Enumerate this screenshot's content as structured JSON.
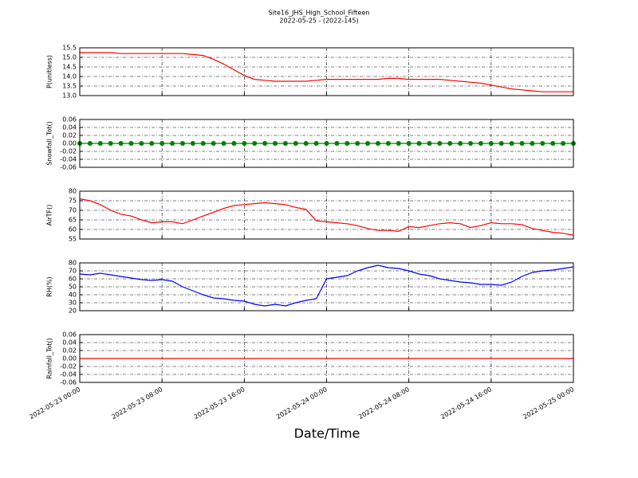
{
  "title": "Site16_JHS_High_School_Fifteen",
  "subtitle": "2022-05-25 - (2022-145)",
  "xlabel": "Date/Time",
  "x": [
    "2022-05-23 00:00",
    "2022-05-23 01:00",
    "2022-05-23 02:00",
    "2022-05-23 03:00",
    "2022-05-23 04:00",
    "2022-05-23 05:00",
    "2022-05-23 06:00",
    "2022-05-23 07:00",
    "2022-05-23 08:00",
    "2022-05-23 09:00",
    "2022-05-23 10:00",
    "2022-05-23 11:00",
    "2022-05-23 12:00",
    "2022-05-23 13:00",
    "2022-05-23 14:00",
    "2022-05-23 15:00",
    "2022-05-23 16:00",
    "2022-05-23 17:00",
    "2022-05-23 18:00",
    "2022-05-23 19:00",
    "2022-05-23 20:00",
    "2022-05-23 21:00",
    "2022-05-23 22:00",
    "2022-05-23 23:00",
    "2022-05-24 00:00",
    "2022-05-24 01:00",
    "2022-05-24 02:00",
    "2022-05-24 03:00",
    "2022-05-24 04:00",
    "2022-05-24 05:00",
    "2022-05-24 06:00",
    "2022-05-24 07:00",
    "2022-05-24 08:00",
    "2022-05-24 09:00",
    "2022-05-24 10:00",
    "2022-05-24 11:00",
    "2022-05-24 12:00",
    "2022-05-24 13:00",
    "2022-05-24 14:00",
    "2022-05-24 15:00",
    "2022-05-24 16:00",
    "2022-05-24 17:00",
    "2022-05-24 18:00",
    "2022-05-24 19:00",
    "2022-05-24 20:00",
    "2022-05-24 21:00",
    "2022-05-24 22:00",
    "2022-05-24 23:00",
    "2022-05-25 00:00"
  ],
  "xlim": [
    "2022-05-23 00:00",
    "2022-05-25 00:00"
  ],
  "xticks": [
    "2022-05-23 00:00",
    "2022-05-23 08:00",
    "2022-05-23 16:00",
    "2022-05-24 00:00",
    "2022-05-24 08:00",
    "2022-05-24 16:00",
    "2022-05-25 00:00"
  ],
  "chart_data": [
    {
      "type": "line",
      "ylabel": "P(unitless)",
      "color": "#ff0000",
      "grid": true,
      "ylim": [
        13.0,
        15.5
      ],
      "yticks": [
        {
          "value": 13,
          "label": "13.0"
        },
        13.5,
        {
          "value": 14,
          "label": "14.0"
        },
        14.5,
        {
          "value": 15,
          "label": "15.0"
        },
        15.5
      ],
      "values": [
        15.25,
        15.25,
        15.25,
        15.25,
        15.2,
        15.2,
        15.2,
        15.2,
        15.2,
        15.2,
        15.2,
        15.15,
        15.1,
        14.9,
        14.65,
        14.35,
        14.05,
        13.85,
        13.8,
        13.75,
        13.75,
        13.75,
        13.75,
        13.8,
        13.85,
        13.85,
        13.85,
        13.85,
        13.85,
        13.85,
        13.9,
        13.9,
        13.85,
        13.85,
        13.85,
        13.85,
        13.8,
        13.75,
        13.7,
        13.65,
        13.55,
        13.45,
        13.35,
        13.3,
        13.25,
        13.2,
        13.2,
        13.2,
        13.2
      ]
    },
    {
      "type": "line",
      "ylabel": "Snowfall_Tot()",
      "color": "#008000",
      "grid": true,
      "marker": "o",
      "ylim": [
        -0.06,
        0.06
      ],
      "yticks": [
        -0.06,
        -0.04,
        -0.02,
        {
          "value": 0,
          "label": "0.00"
        },
        0.02,
        0.04,
        0.06
      ],
      "values": [
        0,
        0,
        0,
        0,
        0,
        0,
        0,
        0,
        0,
        0,
        0,
        0,
        0,
        0,
        0,
        0,
        0,
        0,
        0,
        0,
        0,
        0,
        0,
        0,
        0,
        0,
        0,
        0,
        0,
        0,
        0,
        0,
        0,
        0,
        0,
        0,
        0,
        0,
        0,
        0,
        0,
        0,
        0,
        0,
        0,
        0,
        0,
        0,
        0
      ]
    },
    {
      "type": "line",
      "ylabel": "AirTF()",
      "color": "#ff0000",
      "grid": true,
      "ylim": [
        55,
        80
      ],
      "yticks": [
        55,
        60,
        65,
        70,
        75,
        80
      ],
      "values": [
        76,
        75,
        73,
        70,
        68,
        67,
        65,
        63.5,
        64,
        64,
        63,
        65,
        67,
        69,
        71,
        72.5,
        73,
        73.5,
        74,
        73.5,
        73,
        71.5,
        70.5,
        64.5,
        64,
        63.5,
        63,
        62,
        60.5,
        59.5,
        59.5,
        59,
        61.5,
        61,
        62,
        63,
        63.5,
        63,
        61,
        62,
        63.5,
        63,
        63,
        62.5,
        60.5,
        59.5,
        58.5,
        58,
        57
      ]
    },
    {
      "type": "line",
      "ylabel": "RH(%)",
      "color": "#0000ff",
      "grid": true,
      "ylim": [
        20,
        80
      ],
      "yticks": [
        20,
        30,
        40,
        50,
        60,
        70,
        80
      ],
      "values": [
        66,
        65,
        67,
        65,
        63,
        61,
        59,
        58,
        59,
        57,
        50,
        45,
        40,
        36,
        35,
        33,
        32,
        28,
        26,
        28,
        26,
        30,
        33,
        35,
        60,
        62,
        64,
        70,
        74,
        77,
        74,
        73,
        70,
        66,
        64,
        60,
        58,
        56,
        55,
        53,
        53,
        52,
        56,
        63,
        68,
        70,
        71,
        73,
        75
      ]
    },
    {
      "type": "line",
      "ylabel": "Rainfall_Tot()",
      "color": "#ff0000",
      "grid": true,
      "ylim": [
        -0.06,
        0.06
      ],
      "yticks": [
        -0.06,
        -0.04,
        -0.02,
        {
          "value": 0,
          "label": "0.00"
        },
        0.02,
        0.04,
        0.06
      ],
      "values": [
        0,
        0,
        0,
        0,
        0,
        0,
        0,
        0,
        0,
        0,
        0,
        0,
        0,
        0,
        0,
        0,
        0,
        0,
        0,
        0,
        0,
        0,
        0,
        0,
        0,
        0,
        0,
        0,
        0,
        0,
        0,
        0,
        0,
        0,
        0,
        0,
        0,
        0,
        0,
        0,
        0,
        0,
        0,
        0,
        0,
        0,
        0,
        0,
        0
      ]
    }
  ]
}
